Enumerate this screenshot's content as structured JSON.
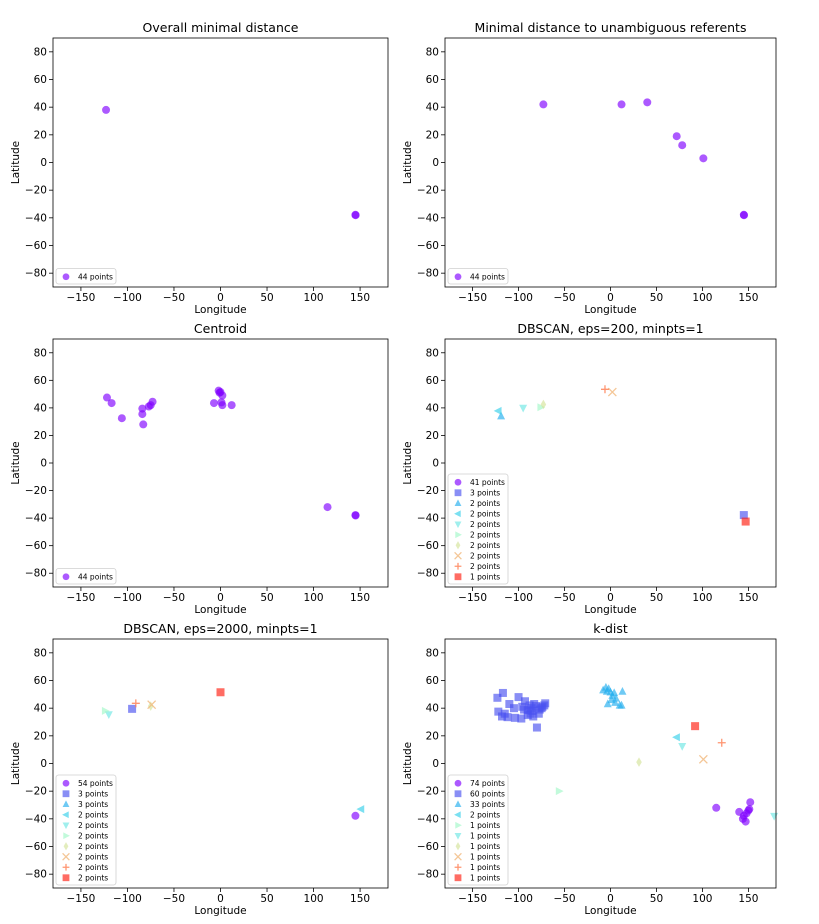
{
  "figure": {
    "description_title": ""
  },
  "colors": {
    "purple": "#8000ff",
    "blue": "#4a52f0",
    "skyblue": "#22aeee",
    "cyan": "#34cfea",
    "aqua": "#6de7e3",
    "mint": "#a2f8c8",
    "khaki": "#d4e39a",
    "peach": "#f1b87c",
    "salmon": "#ff7a4e",
    "red": "#ff1d10"
  },
  "chart_data": [
    {
      "type": "scatter",
      "title": "Overall minimal distance",
      "xlabel": "Longitude",
      "ylabel": "Latitude",
      "xlim": [
        -180,
        180
      ],
      "ylim": [
        -90,
        90
      ],
      "xticks": [
        -150,
        -100,
        -50,
        0,
        50,
        100,
        150
      ],
      "yticks": [
        -80,
        -60,
        -40,
        -20,
        0,
        20,
        40,
        60,
        80
      ],
      "legend_loc": "lower-left",
      "series": [
        {
          "name": "44 points",
          "marker": "circle",
          "color": "purple",
          "points": [
            [
              -123,
              38
            ],
            [
              145,
              -37.8
            ],
            [
              145.2,
              -38.1
            ]
          ]
        }
      ]
    },
    {
      "type": "scatter",
      "title": "Minimal distance to unambiguous referents",
      "xlabel": "Longitude",
      "ylabel": "Latitude",
      "xlim": [
        -180,
        180
      ],
      "ylim": [
        -90,
        90
      ],
      "xticks": [
        -150,
        -100,
        -50,
        0,
        50,
        100,
        150
      ],
      "yticks": [
        -80,
        -60,
        -40,
        -20,
        0,
        20,
        40,
        60,
        80
      ],
      "legend_loc": "lower-left",
      "series": [
        {
          "name": "44 points",
          "marker": "circle",
          "color": "purple",
          "points": [
            [
              -73,
              42
            ],
            [
              12,
              42
            ],
            [
              40,
              43.5
            ],
            [
              72,
              19
            ],
            [
              78,
              12.5
            ],
            [
              101,
              3
            ],
            [
              145,
              -37.8
            ],
            [
              145.2,
              -38.1
            ]
          ]
        }
      ]
    },
    {
      "type": "scatter",
      "title": "Centroid",
      "xlabel": "Longitude",
      "ylabel": "Latitude",
      "xlim": [
        -180,
        180
      ],
      "ylim": [
        -90,
        90
      ],
      "xticks": [
        -150,
        -100,
        -50,
        0,
        50,
        100,
        150
      ],
      "yticks": [
        -80,
        -60,
        -40,
        -20,
        0,
        20,
        40,
        60,
        80
      ],
      "legend_loc": "lower-left",
      "series": [
        {
          "name": "44 points",
          "marker": "circle",
          "color": "purple",
          "points": [
            [
              -122,
              47.5
            ],
            [
              -117,
              43.5
            ],
            [
              -106,
              32.5
            ],
            [
              -84,
              39.5
            ],
            [
              -84,
              35.5
            ],
            [
              -83,
              28
            ],
            [
              -77,
              41
            ],
            [
              -75,
              42
            ],
            [
              -73,
              44.5
            ],
            [
              -2,
              52.5
            ],
            [
              0,
              51.5
            ],
            [
              -1,
              51
            ],
            [
              2,
              49
            ],
            [
              1,
              44
            ],
            [
              -7,
              43.5
            ],
            [
              2,
              42
            ],
            [
              12,
              42
            ],
            [
              115,
              -32
            ],
            [
              145,
              -37.8
            ],
            [
              145.2,
              -38.1
            ]
          ]
        }
      ]
    },
    {
      "type": "scatter",
      "title": "DBSCAN, eps=200, minpts=1",
      "xlabel": "Longitude",
      "ylabel": "Latitude",
      "xlim": [
        -180,
        180
      ],
      "ylim": [
        -90,
        90
      ],
      "xticks": [
        -150,
        -100,
        -50,
        0,
        50,
        100,
        150
      ],
      "yticks": [
        -80,
        -60,
        -40,
        -20,
        0,
        20,
        40,
        60,
        80
      ],
      "legend_loc": "lower-left",
      "series": [
        {
          "name": "41 points",
          "marker": "circle",
          "color": "purple",
          "points": []
        },
        {
          "name": "3 points",
          "marker": "square",
          "color": "blue",
          "points": [
            [
              145,
              -37.8
            ]
          ]
        },
        {
          "name": "2 points",
          "marker": "triangle-up",
          "color": "skyblue",
          "points": [
            [
              -119,
              34
            ]
          ]
        },
        {
          "name": "2 points",
          "marker": "triangle-left",
          "color": "cyan",
          "points": [
            [
              -122,
              37.8
            ]
          ]
        },
        {
          "name": "2 points",
          "marker": "triangle-down",
          "color": "aqua",
          "points": [
            [
              -95,
              40
            ]
          ]
        },
        {
          "name": "2 points",
          "marker": "triangle-right",
          "color": "mint",
          "points": [
            [
              -76,
              40.5
            ]
          ]
        },
        {
          "name": "2 points",
          "marker": "diamond",
          "color": "khaki",
          "points": [
            [
              -73,
              42.5
            ]
          ]
        },
        {
          "name": "2 points",
          "marker": "x",
          "color": "peach",
          "points": [
            [
              2,
              51.5
            ]
          ]
        },
        {
          "name": "2 points",
          "marker": "plus",
          "color": "salmon",
          "points": [
            [
              -6,
              53.5
            ]
          ]
        },
        {
          "name": "1 points",
          "marker": "square",
          "color": "red",
          "points": [
            [
              147,
              -42.5
            ]
          ]
        }
      ]
    },
    {
      "type": "scatter",
      "title": "DBSCAN, eps=2000, minpts=1",
      "xlabel": "Longitude",
      "ylabel": "Latitude",
      "xlim": [
        -180,
        180
      ],
      "ylim": [
        -90,
        90
      ],
      "xticks": [
        -150,
        -100,
        -50,
        0,
        50,
        100,
        150
      ],
      "yticks": [
        -80,
        -60,
        -40,
        -20,
        0,
        20,
        40,
        60,
        80
      ],
      "legend_loc": "lower-left",
      "series": [
        {
          "name": "54 points",
          "marker": "circle",
          "color": "purple",
          "points": [
            [
              145,
              -37.8
            ]
          ]
        },
        {
          "name": "3 points",
          "marker": "square",
          "color": "blue",
          "points": [
            [
              -95,
              39.5
            ]
          ]
        },
        {
          "name": "3 points",
          "marker": "triangle-up",
          "color": "skyblue",
          "points": []
        },
        {
          "name": "2 points",
          "marker": "triangle-left",
          "color": "cyan",
          "points": [
            [
              151,
              -33
            ]
          ]
        },
        {
          "name": "2 points",
          "marker": "triangle-down",
          "color": "aqua",
          "points": [
            [
              -120,
              35.5
            ]
          ]
        },
        {
          "name": "2 points",
          "marker": "triangle-right",
          "color": "mint",
          "points": [
            [
              -124,
              38
            ]
          ]
        },
        {
          "name": "2 points",
          "marker": "diamond",
          "color": "khaki",
          "points": [
            [
              -75,
              41.5
            ]
          ]
        },
        {
          "name": "2 points",
          "marker": "x",
          "color": "peach",
          "points": [
            [
              -74,
              42.5
            ]
          ]
        },
        {
          "name": "2 points",
          "marker": "plus",
          "color": "salmon",
          "points": [
            [
              -91,
              43.5
            ]
          ]
        },
        {
          "name": "2 points",
          "marker": "square",
          "color": "red",
          "points": [
            [
              0,
              51.5
            ]
          ]
        }
      ]
    },
    {
      "type": "scatter",
      "title": "k-dist",
      "xlabel": "Longitude",
      "ylabel": "Latitude",
      "xlim": [
        -180,
        180
      ],
      "ylim": [
        -90,
        90
      ],
      "xticks": [
        -150,
        -100,
        -50,
        0,
        50,
        100,
        150
      ],
      "yticks": [
        -80,
        -60,
        -40,
        -20,
        0,
        20,
        40,
        60,
        80
      ],
      "legend_loc": "lower-left",
      "series": [
        {
          "name": "74 points",
          "marker": "circle",
          "color": "purple",
          "points": [
            [
              115,
              -32
            ],
            [
              140,
              -35
            ],
            [
              145,
              -37.8
            ],
            [
              147,
              -42
            ],
            [
              150,
              -34
            ],
            [
              151,
              -33
            ],
            [
              152,
              -28
            ],
            [
              148,
              -36
            ],
            [
              144,
              -40
            ]
          ]
        },
        {
          "name": "60 points",
          "marker": "square",
          "color": "blue",
          "points": [
            [
              -123,
              47.5
            ],
            [
              -117,
              51
            ],
            [
              -122,
              37.5
            ],
            [
              -118,
              34
            ],
            [
              -115,
              36
            ],
            [
              -112,
              33.5
            ],
            [
              -105,
              40
            ],
            [
              -104,
              33
            ],
            [
              -97,
              32.5
            ],
            [
              -96,
              41
            ],
            [
              -94,
              39
            ],
            [
              -93,
              45
            ],
            [
              -90,
              38.5
            ],
            [
              -88,
              42
            ],
            [
              -87,
              36
            ],
            [
              -86,
              40
            ],
            [
              -84,
              34
            ],
            [
              -83,
              43
            ],
            [
              -81,
              41.5
            ],
            [
              -80,
              26
            ],
            [
              -77,
              39
            ],
            [
              -75,
              40
            ],
            [
              -74,
              41
            ],
            [
              -72,
              42
            ],
            [
              -71,
              43.5
            ],
            [
              -100,
              48
            ],
            [
              -110,
              43
            ],
            [
              -90,
              35
            ],
            [
              -85,
              38
            ],
            [
              -78,
              36
            ]
          ]
        },
        {
          "name": "33 points",
          "marker": "triangle-up",
          "color": "skyblue",
          "points": [
            [
              -4,
              52
            ],
            [
              -2,
              54
            ],
            [
              0,
              51.5
            ],
            [
              2,
              49
            ],
            [
              4,
              51
            ],
            [
              6,
              47
            ],
            [
              -5,
              55
            ],
            [
              1,
              46
            ],
            [
              5,
              44
            ],
            [
              10,
              42
            ],
            [
              12,
              42
            ],
            [
              -3,
              43
            ],
            [
              -8,
              53
            ],
            [
              13,
              52
            ]
          ]
        },
        {
          "name": "2 points",
          "marker": "triangle-left",
          "color": "cyan",
          "points": [
            [
              72,
              19
            ]
          ]
        },
        {
          "name": "1 points",
          "marker": "triangle-right",
          "color": "mint",
          "points": [
            [
              -56,
              -20
            ]
          ]
        },
        {
          "name": "1 points",
          "marker": "triangle-down",
          "color": "aqua",
          "points": [
            [
              78,
              12.5
            ],
            [
              178,
              -38
            ]
          ]
        },
        {
          "name": "1 points",
          "marker": "diamond",
          "color": "khaki",
          "points": [
            [
              31,
              1
            ]
          ]
        },
        {
          "name": "1 points",
          "marker": "x",
          "color": "peach",
          "points": [
            [
              101,
              3
            ]
          ]
        },
        {
          "name": "1 points",
          "marker": "plus",
          "color": "salmon",
          "points": [
            [
              121,
              15
            ]
          ]
        },
        {
          "name": "1 points",
          "marker": "square",
          "color": "red",
          "points": [
            [
              92,
              27
            ]
          ]
        }
      ]
    }
  ]
}
